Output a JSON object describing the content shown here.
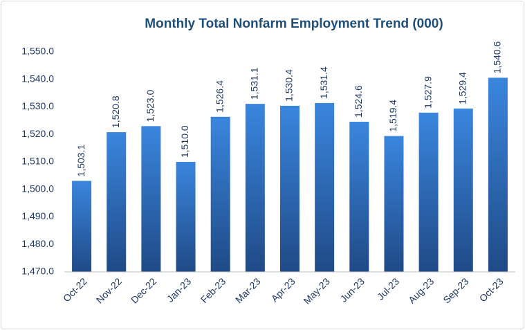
{
  "chart_data": {
    "type": "bar",
    "title": "Monthly Total Nonfarm Employment Trend (000)",
    "categories": [
      "Oct-22",
      "Nov-22",
      "Dec-22",
      "Jan-23",
      "Feb-23",
      "Mar-23",
      "Apr-23",
      "May-23",
      "Jun-23",
      "Jul-23",
      "Aug-23",
      "Sep-23",
      "Oct-23"
    ],
    "values": [
      1503.1,
      1520.8,
      1523.0,
      1510.0,
      1526.4,
      1531.1,
      1530.4,
      1531.4,
      1524.6,
      1519.4,
      1527.9,
      1529.4,
      1540.6
    ],
    "value_labels": [
      "1,503.1",
      "1,520.8",
      "1,523.0",
      "1,510.0",
      "1,526.4",
      "1,531.1",
      "1,530.4",
      "1,531.4",
      "1,524.6",
      "1,519.4",
      "1,527.9",
      "1,529.4",
      "1,540.6"
    ],
    "color": "#3a86de",
    "ylim": [
      1470,
      1550
    ],
    "yticks": [
      {
        "value": 1470,
        "label": "1,470.0"
      },
      {
        "value": 1480,
        "label": "1,480.0"
      },
      {
        "value": 1490,
        "label": "1,490.0"
      },
      {
        "value": 1500,
        "label": "1,500.0"
      },
      {
        "value": 1510,
        "label": "1,510.0"
      },
      {
        "value": 1520,
        "label": "1,520.0"
      },
      {
        "value": 1530,
        "label": "1,530.0"
      },
      {
        "value": 1540,
        "label": "1,540.0"
      },
      {
        "value": 1550,
        "label": "1,550.0"
      }
    ],
    "grid": false
  }
}
